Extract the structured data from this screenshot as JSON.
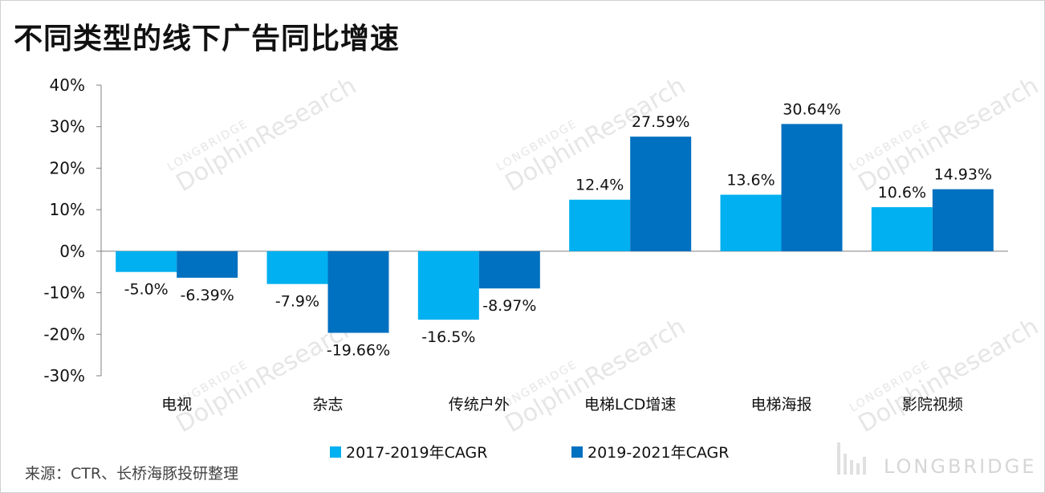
{
  "title": "不同类型的线下广告同比增速",
  "source": "来源：CTR、长桥海豚投研整理",
  "brand": "LONGBRIDGE",
  "colors": {
    "series1": "#00B0F0",
    "series2": "#0070C0",
    "axis": "#7f7f7f",
    "watermark": "#e6e6e6"
  },
  "chart_data": {
    "type": "bar",
    "title": "不同类型的线下广告同比增速",
    "categories": [
      "电视",
      "杂志",
      "传统户外",
      "电梯LCD增速",
      "电梯海报",
      "影院视频"
    ],
    "series": [
      {
        "name": "2017-2019年CAGR",
        "values": [
          -5.0,
          -7.9,
          -16.5,
          12.4,
          13.6,
          10.6
        ],
        "labels": [
          "-5.0%",
          "-7.9%",
          "-16.5%",
          "12.4%",
          "13.6%",
          "10.6%"
        ]
      },
      {
        "name": "2019-2021年CAGR",
        "values": [
          -6.39,
          -19.66,
          -8.97,
          27.59,
          30.64,
          14.93
        ],
        "labels": [
          "-6.39%",
          "-19.66%",
          "-8.97%",
          "27.59%",
          "30.64%",
          "14.93%"
        ]
      }
    ],
    "ylim": [
      -30,
      40
    ],
    "yticks": [
      40,
      30,
      20,
      10,
      0,
      -10,
      -20,
      -30
    ],
    "ytick_labels": [
      "40%",
      "30%",
      "20%",
      "10%",
      "0%",
      "-10%",
      "-20%",
      "-30%"
    ],
    "grid": false,
    "legend": "bottom"
  },
  "watermark": {
    "line1": "LONGBRIDGE",
    "line2": "DolphinResearch"
  }
}
